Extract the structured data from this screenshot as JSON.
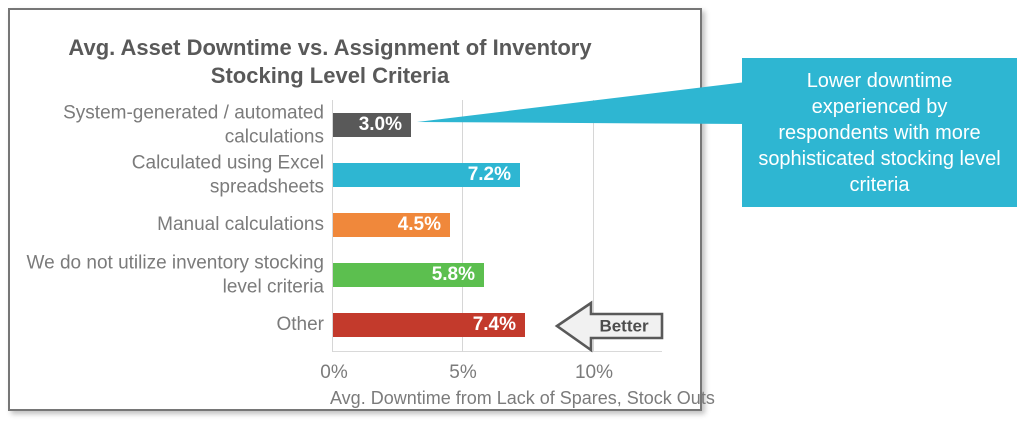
{
  "chart_data": {
    "type": "bar",
    "orientation": "horizontal",
    "title": "Avg. Asset Downtime vs. Assignment of Inventory Stocking Level Criteria",
    "categories": [
      "System-generated / automated calculations",
      "Calculated using Excel spreadsheets",
      "Manual calculations",
      "We do not utilize inventory stocking level criteria",
      "Other"
    ],
    "values": [
      3.0,
      7.2,
      4.5,
      5.8,
      7.4
    ],
    "value_labels": [
      "3.0%",
      "7.2%",
      "4.5%",
      "5.8%",
      "7.4%"
    ],
    "bar_colors": [
      "#595959",
      "#2eb6d2",
      "#f0883b",
      "#5cbf4f",
      "#c33a2c"
    ],
    "xlabel": "Avg. Downtime from Lack of Spares, Stock Outs",
    "x_ticks": [
      "0%",
      "5%",
      "10%"
    ],
    "x_tick_values": [
      0,
      5,
      10
    ],
    "xlim": [
      0,
      12.7
    ],
    "grid": "vertical",
    "legend": "none"
  },
  "annotations": {
    "better_arrow_label": "Better",
    "callout_text": "Lower downtime experienced by respondents with more sophisticated stocking level criteria",
    "callout_color": "#2eb6d2",
    "callout_points_to": "System-generated / automated calculations bar (3.0%)"
  }
}
